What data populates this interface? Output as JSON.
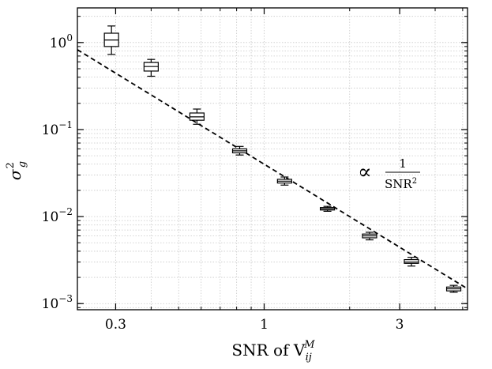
{
  "chart_data": {
    "type": "box",
    "xscale": "log",
    "yscale": "log",
    "xlim": [
      0.22,
      5.2
    ],
    "ylim": [
      0.00085,
      2.5
    ],
    "grid": true,
    "x_ticks": [
      {
        "value": 0.3,
        "label": "0.3"
      },
      {
        "value": 1,
        "label": "1"
      },
      {
        "value": 3,
        "label": "3"
      }
    ],
    "y_ticks": [
      {
        "value": 1,
        "base": "10",
        "exp": "0"
      },
      {
        "value": 0.1,
        "base": "10",
        "exp": "−1"
      },
      {
        "value": 0.01,
        "base": "10",
        "exp": "−2"
      },
      {
        "value": 0.001,
        "base": "10",
        "exp": "−3"
      }
    ],
    "xlabel": {
      "text": "SNR of V",
      "sub": "ij",
      "sup": "M"
    },
    "ylabel": {
      "text": "σ",
      "sub": "g",
      "sup": "2"
    },
    "boxes": [
      {
        "x": 0.29,
        "whislo": 0.73,
        "q1": 0.9,
        "med": 1.07,
        "q3": 1.28,
        "whishi": 1.55
      },
      {
        "x": 0.4,
        "whislo": 0.41,
        "q1": 0.47,
        "med": 0.53,
        "q3": 0.59,
        "whishi": 0.64
      },
      {
        "x": 0.58,
        "whislo": 0.115,
        "q1": 0.128,
        "med": 0.14,
        "q3": 0.155,
        "whishi": 0.172
      },
      {
        "x": 0.82,
        "whislo": 0.051,
        "q1": 0.054,
        "med": 0.057,
        "q3": 0.06,
        "whishi": 0.064
      },
      {
        "x": 1.18,
        "whislo": 0.023,
        "q1": 0.0243,
        "med": 0.0255,
        "q3": 0.0268,
        "whishi": 0.0285
      },
      {
        "x": 1.67,
        "whislo": 0.0115,
        "q1": 0.0119,
        "med": 0.0123,
        "q3": 0.0127,
        "whishi": 0.0131
      },
      {
        "x": 2.35,
        "whislo": 0.0054,
        "q1": 0.0057,
        "med": 0.006,
        "q3": 0.0063,
        "whishi": 0.0066
      },
      {
        "x": 3.3,
        "whislo": 0.0027,
        "q1": 0.0029,
        "med": 0.003,
        "q3": 0.0032,
        "whishi": 0.0034
      },
      {
        "x": 4.65,
        "whislo": 0.00135,
        "q1": 0.0014,
        "med": 0.00148,
        "q3": 0.00155,
        "whishi": 0.00162
      }
    ],
    "reference_line": {
      "k": 0.04,
      "x_range": [
        0.22,
        5.2
      ]
    },
    "annotation": {
      "prefix": "∝",
      "numerator": "1",
      "denominator": "SNR",
      "denominator_sup": "2"
    }
  }
}
